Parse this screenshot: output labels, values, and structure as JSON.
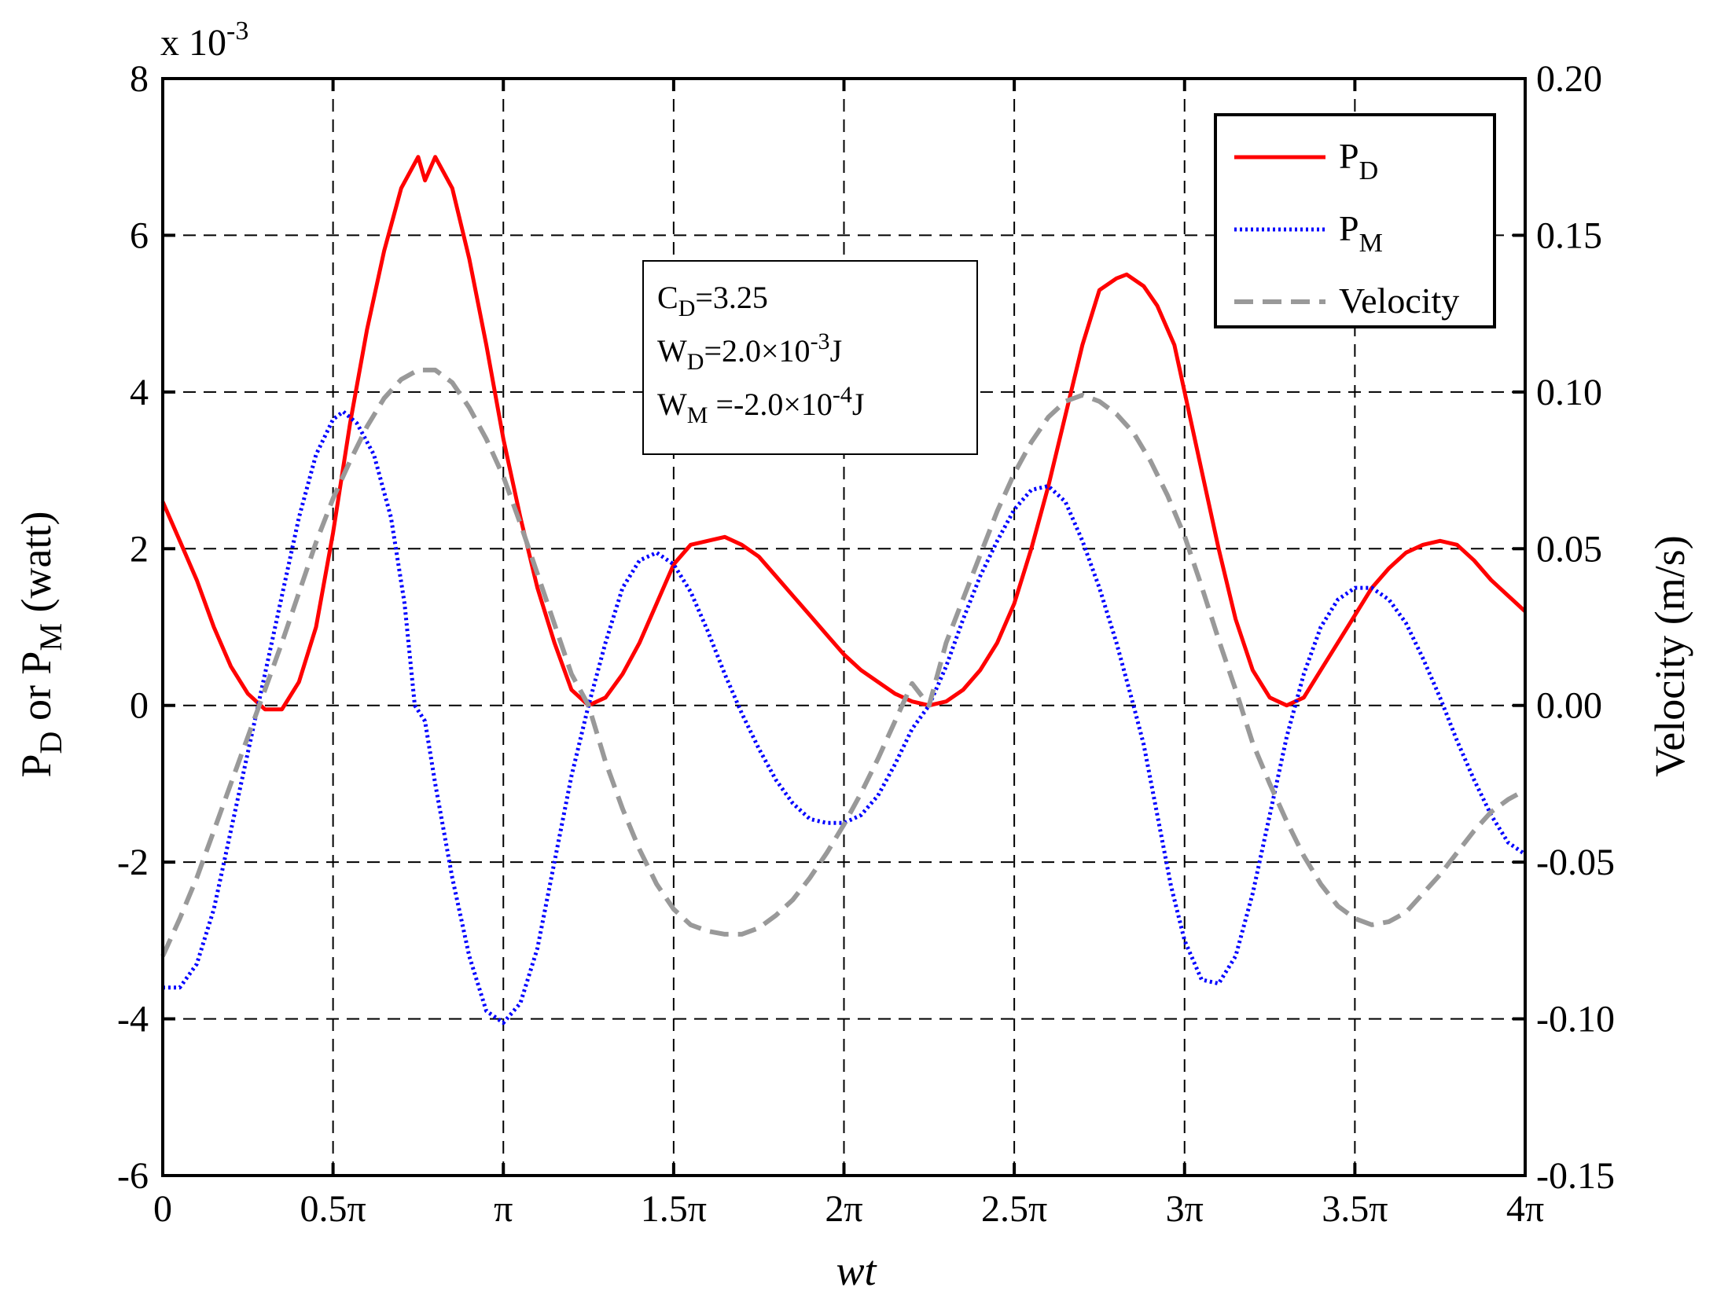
{
  "chart_data": {
    "type": "line",
    "title": "",
    "xlabel": "wt",
    "ylabel_left": {
      "main": "P",
      "sub1": "D",
      "mid": " or P",
      "sub2": "M",
      "tail": " (watt)"
    },
    "ylabel_right": "Velocity (m/s)",
    "exponent_label": {
      "base": "x 10",
      "exp": "-3"
    },
    "x_range_pi": [
      0,
      4
    ],
    "x_ticks": [
      {
        "value": 0,
        "label": "0"
      },
      {
        "value": 0.5,
        "label": "0.5π"
      },
      {
        "value": 1,
        "label": "π"
      },
      {
        "value": 1.5,
        "label": "1.5π"
      },
      {
        "value": 2,
        "label": "2π"
      },
      {
        "value": 2.5,
        "label": "2.5π"
      },
      {
        "value": 3,
        "label": "3π"
      },
      {
        "value": 3.5,
        "label": "3.5π"
      },
      {
        "value": 4,
        "label": "4π"
      }
    ],
    "ylim_left": [
      -6,
      8
    ],
    "y_ticks_left": [
      {
        "value": -6,
        "label": "-6"
      },
      {
        "value": -4,
        "label": "-4"
      },
      {
        "value": -2,
        "label": "-2"
      },
      {
        "value": 0,
        "label": "0"
      },
      {
        "value": 2,
        "label": "2"
      },
      {
        "value": 4,
        "label": "4"
      },
      {
        "value": 6,
        "label": "6"
      },
      {
        "value": 8,
        "label": "8"
      }
    ],
    "ylim_right": [
      -0.15,
      0.2
    ],
    "y_ticks_right": [
      {
        "value": -0.15,
        "label": "-0.15"
      },
      {
        "value": -0.1,
        "label": "-0.10"
      },
      {
        "value": -0.05,
        "label": "-0.05"
      },
      {
        "value": 0,
        "label": "0.00"
      },
      {
        "value": 0.05,
        "label": "0.05"
      },
      {
        "value": 0.1,
        "label": "0.10"
      },
      {
        "value": 0.15,
        "label": "0.15"
      },
      {
        "value": 0.2,
        "label": "0.20"
      }
    ],
    "grid": true,
    "legend_position": "top-right",
    "series": [
      {
        "name": "PD",
        "legend_main": "P",
        "legend_sub": "D",
        "axis": "left",
        "color": "#ff0000",
        "style": "solid",
        "points": [
          [
            0,
            2.6
          ],
          [
            0.05,
            2.1
          ],
          [
            0.1,
            1.6
          ],
          [
            0.15,
            1.0
          ],
          [
            0.2,
            0.5
          ],
          [
            0.25,
            0.15
          ],
          [
            0.3,
            -0.05
          ],
          [
            0.35,
            -0.05
          ],
          [
            0.4,
            0.3
          ],
          [
            0.45,
            1.0
          ],
          [
            0.5,
            2.2
          ],
          [
            0.55,
            3.6
          ],
          [
            0.6,
            4.8
          ],
          [
            0.65,
            5.8
          ],
          [
            0.7,
            6.6
          ],
          [
            0.75,
            7.0
          ],
          [
            0.77,
            6.7
          ],
          [
            0.8,
            7.0
          ],
          [
            0.85,
            6.6
          ],
          [
            0.9,
            5.7
          ],
          [
            0.95,
            4.6
          ],
          [
            1.0,
            3.4
          ],
          [
            1.05,
            2.4
          ],
          [
            1.1,
            1.5
          ],
          [
            1.15,
            0.8
          ],
          [
            1.2,
            0.2
          ],
          [
            1.25,
            0.0
          ],
          [
            1.3,
            0.1
          ],
          [
            1.35,
            0.4
          ],
          [
            1.4,
            0.8
          ],
          [
            1.45,
            1.3
          ],
          [
            1.5,
            1.8
          ],
          [
            1.55,
            2.05
          ],
          [
            1.6,
            2.1
          ],
          [
            1.65,
            2.15
          ],
          [
            1.7,
            2.05
          ],
          [
            1.75,
            1.9
          ],
          [
            1.8,
            1.65
          ],
          [
            1.85,
            1.4
          ],
          [
            1.9,
            1.15
          ],
          [
            1.95,
            0.9
          ],
          [
            2.0,
            0.65
          ],
          [
            2.05,
            0.45
          ],
          [
            2.1,
            0.3
          ],
          [
            2.15,
            0.15
          ],
          [
            2.2,
            0.05
          ],
          [
            2.25,
            0.0
          ],
          [
            2.3,
            0.05
          ],
          [
            2.35,
            0.2
          ],
          [
            2.4,
            0.45
          ],
          [
            2.45,
            0.8
          ],
          [
            2.5,
            1.3
          ],
          [
            2.55,
            2.0
          ],
          [
            2.6,
            2.8
          ],
          [
            2.65,
            3.7
          ],
          [
            2.7,
            4.6
          ],
          [
            2.75,
            5.3
          ],
          [
            2.8,
            5.45
          ],
          [
            2.83,
            5.5
          ],
          [
            2.88,
            5.35
          ],
          [
            2.92,
            5.1
          ],
          [
            2.97,
            4.6
          ],
          [
            3.0,
            4.0
          ],
          [
            3.05,
            3.0
          ],
          [
            3.1,
            2.0
          ],
          [
            3.15,
            1.1
          ],
          [
            3.2,
            0.45
          ],
          [
            3.25,
            0.1
          ],
          [
            3.3,
            0.0
          ],
          [
            3.35,
            0.1
          ],
          [
            3.4,
            0.45
          ],
          [
            3.45,
            0.8
          ],
          [
            3.5,
            1.15
          ],
          [
            3.55,
            1.5
          ],
          [
            3.6,
            1.75
          ],
          [
            3.65,
            1.95
          ],
          [
            3.7,
            2.05
          ],
          [
            3.75,
            2.1
          ],
          [
            3.8,
            2.05
          ],
          [
            3.85,
            1.85
          ],
          [
            3.9,
            1.6
          ],
          [
            3.95,
            1.4
          ],
          [
            4.0,
            1.2
          ]
        ]
      },
      {
        "name": "PM",
        "legend_main": "P",
        "legend_sub": "M",
        "axis": "left",
        "color": "#0000ff",
        "style": "dotted",
        "points": [
          [
            0,
            -3.6
          ],
          [
            0.05,
            -3.6
          ],
          [
            0.1,
            -3.3
          ],
          [
            0.15,
            -2.6
          ],
          [
            0.2,
            -1.6
          ],
          [
            0.25,
            -0.6
          ],
          [
            0.3,
            0.4
          ],
          [
            0.35,
            1.4
          ],
          [
            0.4,
            2.4
          ],
          [
            0.45,
            3.2
          ],
          [
            0.5,
            3.65
          ],
          [
            0.53,
            3.75
          ],
          [
            0.57,
            3.6
          ],
          [
            0.62,
            3.2
          ],
          [
            0.67,
            2.4
          ],
          [
            0.71,
            1.3
          ],
          [
            0.74,
            0.0
          ],
          [
            0.77,
            -0.2
          ],
          [
            0.8,
            -1.0
          ],
          [
            0.85,
            -2.2
          ],
          [
            0.9,
            -3.2
          ],
          [
            0.95,
            -3.9
          ],
          [
            1.0,
            -4.05
          ],
          [
            1.05,
            -3.8
          ],
          [
            1.1,
            -3.1
          ],
          [
            1.15,
            -2.0
          ],
          [
            1.2,
            -0.9
          ],
          [
            1.25,
            0.0
          ],
          [
            1.3,
            0.8
          ],
          [
            1.35,
            1.5
          ],
          [
            1.4,
            1.85
          ],
          [
            1.45,
            1.95
          ],
          [
            1.5,
            1.8
          ],
          [
            1.55,
            1.45
          ],
          [
            1.6,
            0.95
          ],
          [
            1.65,
            0.4
          ],
          [
            1.7,
            -0.1
          ],
          [
            1.75,
            -0.55
          ],
          [
            1.8,
            -0.95
          ],
          [
            1.85,
            -1.25
          ],
          [
            1.9,
            -1.45
          ],
          [
            1.95,
            -1.5
          ],
          [
            2.0,
            -1.5
          ],
          [
            2.05,
            -1.4
          ],
          [
            2.1,
            -1.15
          ],
          [
            2.15,
            -0.75
          ],
          [
            2.2,
            -0.3
          ],
          [
            2.25,
            0.0
          ],
          [
            2.3,
            0.5
          ],
          [
            2.35,
            1.1
          ],
          [
            2.4,
            1.65
          ],
          [
            2.45,
            2.1
          ],
          [
            2.5,
            2.5
          ],
          [
            2.55,
            2.75
          ],
          [
            2.6,
            2.8
          ],
          [
            2.65,
            2.6
          ],
          [
            2.7,
            2.1
          ],
          [
            2.75,
            1.5
          ],
          [
            2.8,
            0.8
          ],
          [
            2.85,
            0.0
          ],
          [
            2.88,
            -0.5
          ],
          [
            2.92,
            -1.4
          ],
          [
            2.96,
            -2.3
          ],
          [
            3.0,
            -3.0
          ],
          [
            3.05,
            -3.5
          ],
          [
            3.1,
            -3.55
          ],
          [
            3.15,
            -3.2
          ],
          [
            3.2,
            -2.4
          ],
          [
            3.25,
            -1.4
          ],
          [
            3.3,
            -0.4
          ],
          [
            3.35,
            0.4
          ],
          [
            3.4,
            1.0
          ],
          [
            3.45,
            1.35
          ],
          [
            3.5,
            1.5
          ],
          [
            3.55,
            1.5
          ],
          [
            3.6,
            1.35
          ],
          [
            3.65,
            1.05
          ],
          [
            3.7,
            0.6
          ],
          [
            3.75,
            0.1
          ],
          [
            3.8,
            -0.45
          ],
          [
            3.85,
            -0.95
          ],
          [
            3.9,
            -1.4
          ],
          [
            3.95,
            -1.75
          ],
          [
            4.0,
            -1.9
          ]
        ]
      },
      {
        "name": "Velocity",
        "legend_main": "Velocity",
        "legend_sub": "",
        "axis": "right",
        "color": "#999999",
        "style": "dashed",
        "points": [
          [
            0,
            -0.08
          ],
          [
            0.05,
            -0.068
          ],
          [
            0.1,
            -0.055
          ],
          [
            0.15,
            -0.04
          ],
          [
            0.2,
            -0.025
          ],
          [
            0.25,
            -0.01
          ],
          [
            0.3,
            0.005
          ],
          [
            0.35,
            0.02
          ],
          [
            0.4,
            0.036
          ],
          [
            0.45,
            0.052
          ],
          [
            0.5,
            0.066
          ],
          [
            0.55,
            0.078
          ],
          [
            0.6,
            0.089
          ],
          [
            0.65,
            0.098
          ],
          [
            0.7,
            0.104
          ],
          [
            0.75,
            0.107
          ],
          [
            0.8,
            0.107
          ],
          [
            0.85,
            0.103
          ],
          [
            0.9,
            0.095
          ],
          [
            0.95,
            0.085
          ],
          [
            1.0,
            0.073
          ],
          [
            1.05,
            0.058
          ],
          [
            1.1,
            0.042
          ],
          [
            1.15,
            0.026
          ],
          [
            1.2,
            0.01
          ],
          [
            1.25,
            0.0
          ],
          [
            1.3,
            -0.018
          ],
          [
            1.35,
            -0.033
          ],
          [
            1.4,
            -0.046
          ],
          [
            1.45,
            -0.057
          ],
          [
            1.5,
            -0.065
          ],
          [
            1.55,
            -0.07
          ],
          [
            1.6,
            -0.072
          ],
          [
            1.65,
            -0.073
          ],
          [
            1.7,
            -0.073
          ],
          [
            1.75,
            -0.071
          ],
          [
            1.8,
            -0.067
          ],
          [
            1.85,
            -0.062
          ],
          [
            1.9,
            -0.055
          ],
          [
            1.95,
            -0.047
          ],
          [
            2.0,
            -0.038
          ],
          [
            2.05,
            -0.028
          ],
          [
            2.1,
            -0.017
          ],
          [
            2.15,
            -0.005
          ],
          [
            2.2,
            0.007
          ],
          [
            2.25,
            0.0
          ],
          [
            2.3,
            0.02
          ],
          [
            2.35,
            0.034
          ],
          [
            2.4,
            0.048
          ],
          [
            2.45,
            0.062
          ],
          [
            2.5,
            0.074
          ],
          [
            2.55,
            0.084
          ],
          [
            2.6,
            0.092
          ],
          [
            2.65,
            0.097
          ],
          [
            2.7,
            0.099
          ],
          [
            2.75,
            0.097
          ],
          [
            2.8,
            0.093
          ],
          [
            2.85,
            0.087
          ],
          [
            2.9,
            0.078
          ],
          [
            2.95,
            0.067
          ],
          [
            3.0,
            0.054
          ],
          [
            3.05,
            0.038
          ],
          [
            3.1,
            0.021
          ],
          [
            3.15,
            0.005
          ],
          [
            3.2,
            -0.012
          ],
          [
            3.25,
            -0.025
          ],
          [
            3.3,
            -0.037
          ],
          [
            3.35,
            -0.048
          ],
          [
            3.4,
            -0.057
          ],
          [
            3.45,
            -0.064
          ],
          [
            3.5,
            -0.068
          ],
          [
            3.55,
            -0.07
          ],
          [
            3.6,
            -0.069
          ],
          [
            3.65,
            -0.066
          ],
          [
            3.7,
            -0.06
          ],
          [
            3.75,
            -0.054
          ],
          [
            3.8,
            -0.047
          ],
          [
            3.85,
            -0.04
          ],
          [
            3.9,
            -0.034
          ],
          [
            3.95,
            -0.03
          ],
          [
            4.0,
            -0.027
          ]
        ]
      }
    ],
    "annotation_lines": [
      {
        "main": "C",
        "sub": "D",
        "rest": "=3.25",
        "sup": "",
        "tail": ""
      },
      {
        "main": "W",
        "sub": "D",
        "rest": "=2.0×10",
        "sup": "-3",
        "tail": "J"
      },
      {
        "main": "W",
        "sub": "M",
        "rest": " =-2.0×10",
        "sup": "-4",
        "tail": "J"
      }
    ]
  }
}
